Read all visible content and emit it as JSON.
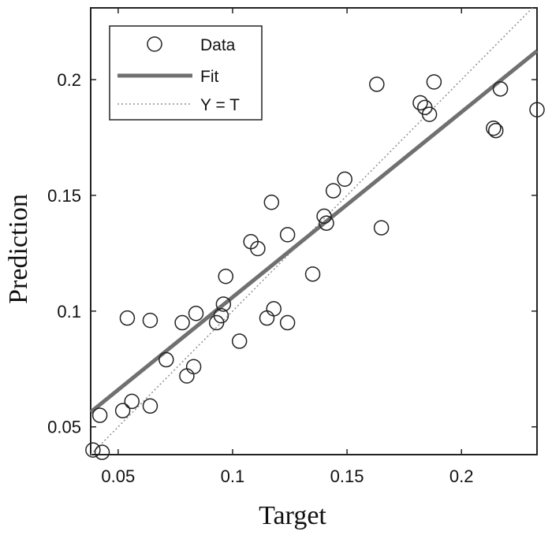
{
  "chart_data": {
    "type": "scatter",
    "xlabel": "Target",
    "ylabel": "Prediction",
    "xlim": [
      0.038,
      0.233
    ],
    "ylim": [
      0.038,
      0.231
    ],
    "x_ticks": [
      0.05,
      0.1,
      0.15,
      0.2
    ],
    "x_tick_labels": [
      "0.05",
      "0.1",
      "0.15",
      "0.2"
    ],
    "y_ticks": [
      0.05,
      0.1,
      0.15,
      0.2
    ],
    "y_tick_labels": [
      "0.05",
      "0.1",
      "0.15",
      "0.2"
    ],
    "grid": false,
    "legend": {
      "placement": "top-left",
      "entries": [
        {
          "label": "Data",
          "kind": "marker"
        },
        {
          "label": "Fit",
          "kind": "line"
        },
        {
          "label": "Y = T",
          "kind": "dotted"
        }
      ]
    },
    "fit": {
      "slope": 0.8,
      "intercept": 0.026
    },
    "identity": {
      "slope": 1,
      "intercept": 0
    },
    "colors": {
      "data": "#222222",
      "fit": "#707070",
      "identity": "#909090"
    },
    "points": [
      {
        "x": 0.039,
        "y": 0.04
      },
      {
        "x": 0.043,
        "y": 0.039
      },
      {
        "x": 0.042,
        "y": 0.055
      },
      {
        "x": 0.052,
        "y": 0.057
      },
      {
        "x": 0.056,
        "y": 0.061
      },
      {
        "x": 0.054,
        "y": 0.097
      },
      {
        "x": 0.064,
        "y": 0.059
      },
      {
        "x": 0.064,
        "y": 0.096
      },
      {
        "x": 0.071,
        "y": 0.079
      },
      {
        "x": 0.078,
        "y": 0.095
      },
      {
        "x": 0.08,
        "y": 0.072
      },
      {
        "x": 0.083,
        "y": 0.076
      },
      {
        "x": 0.084,
        "y": 0.099
      },
      {
        "x": 0.093,
        "y": 0.095
      },
      {
        "x": 0.095,
        "y": 0.098
      },
      {
        "x": 0.096,
        "y": 0.103
      },
      {
        "x": 0.097,
        "y": 0.115
      },
      {
        "x": 0.103,
        "y": 0.087
      },
      {
        "x": 0.108,
        "y": 0.13
      },
      {
        "x": 0.111,
        "y": 0.127
      },
      {
        "x": 0.115,
        "y": 0.097
      },
      {
        "x": 0.117,
        "y": 0.147
      },
      {
        "x": 0.118,
        "y": 0.101
      },
      {
        "x": 0.124,
        "y": 0.133
      },
      {
        "x": 0.124,
        "y": 0.095
      },
      {
        "x": 0.135,
        "y": 0.116
      },
      {
        "x": 0.14,
        "y": 0.141
      },
      {
        "x": 0.141,
        "y": 0.138
      },
      {
        "x": 0.144,
        "y": 0.152
      },
      {
        "x": 0.149,
        "y": 0.157
      },
      {
        "x": 0.163,
        "y": 0.198
      },
      {
        "x": 0.165,
        "y": 0.136
      },
      {
        "x": 0.182,
        "y": 0.19
      },
      {
        "x": 0.184,
        "y": 0.188
      },
      {
        "x": 0.186,
        "y": 0.185
      },
      {
        "x": 0.188,
        "y": 0.199
      },
      {
        "x": 0.214,
        "y": 0.179
      },
      {
        "x": 0.215,
        "y": 0.178
      },
      {
        "x": 0.217,
        "y": 0.196
      },
      {
        "x": 0.233,
        "y": 0.187
      }
    ]
  }
}
